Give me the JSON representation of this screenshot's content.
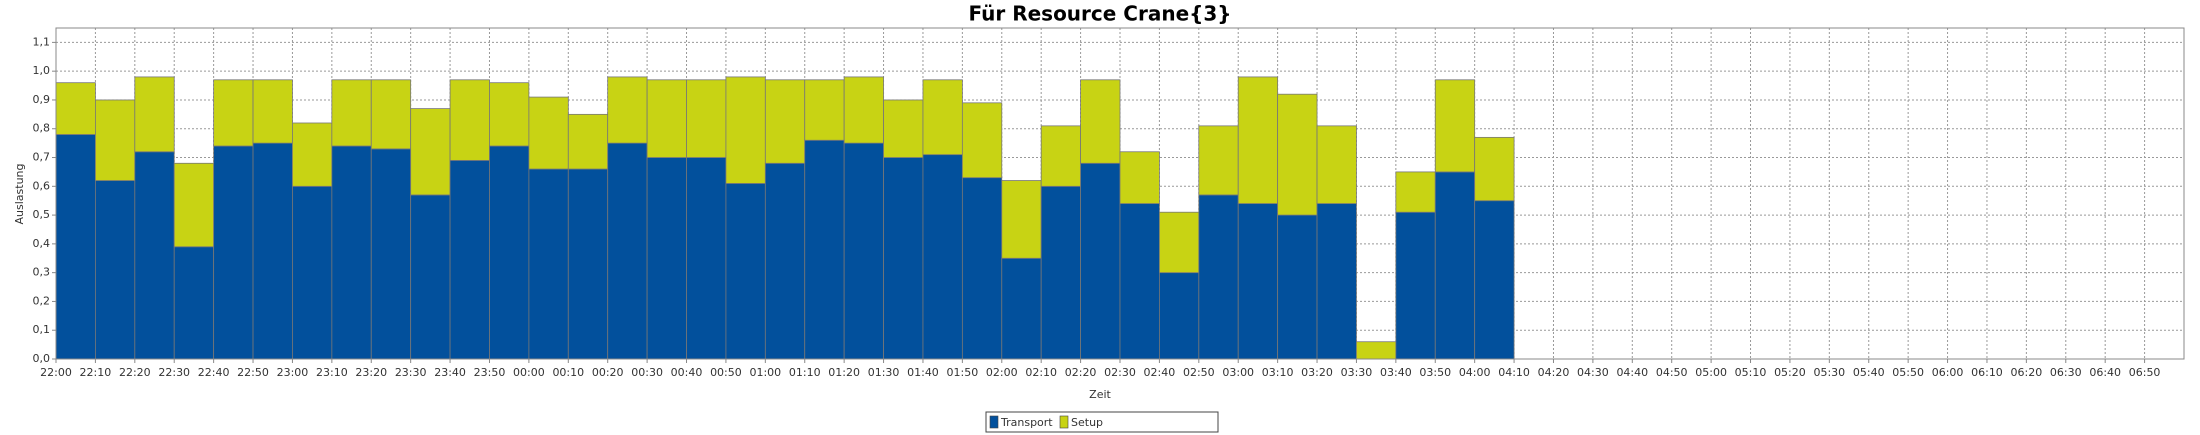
{
  "chart_data": {
    "type": "stacked_bar",
    "title": "Für Resource Crane{3}",
    "x_label": "Zeit",
    "y_label": "Auslastung",
    "categories": [
      "22:00",
      "22:10",
      "22:20",
      "22:30",
      "22:40",
      "22:50",
      "23:00",
      "23:10",
      "23:20",
      "23:30",
      "23:40",
      "23:50",
      "00:00",
      "00:10",
      "00:20",
      "00:30",
      "00:40",
      "00:50",
      "01:00",
      "01:10",
      "01:20",
      "01:30",
      "01:40",
      "01:50",
      "02:00",
      "02:10",
      "02:20",
      "02:30",
      "02:40",
      "02:50",
      "03:00",
      "03:10",
      "03:20",
      "03:30",
      "03:40",
      "03:50",
      "04:00",
      "04:10",
      "04:20",
      "04:30",
      "04:40",
      "04:50",
      "05:00",
      "05:10",
      "05:20",
      "05:30",
      "05:40",
      "05:50",
      "06:00",
      "06:10",
      "06:20",
      "06:30",
      "06:40",
      "06:50"
    ],
    "series": [
      {
        "name": "Transport",
        "color": "#02509c",
        "values": [
          0.78,
          0.62,
          0.72,
          0.39,
          0.74,
          0.75,
          0.6,
          0.74,
          0.73,
          0.57,
          0.69,
          0.74,
          0.66,
          0.66,
          0.75,
          0.7,
          0.7,
          0.61,
          0.68,
          0.76,
          0.75,
          0.7,
          0.71,
          0.63,
          0.35,
          0.6,
          0.68,
          0.54,
          0.3,
          0.57,
          0.54,
          0.5,
          0.54,
          0,
          0.51,
          0.65,
          0.55,
          null,
          null,
          null,
          null,
          null,
          null,
          null,
          null,
          null,
          null,
          null,
          null,
          null,
          null,
          null,
          null,
          null
        ]
      },
      {
        "name": "Setup",
        "color": "#c8d314",
        "values": [
          0.18,
          0.28,
          0.26,
          0.29,
          0.23,
          0.22,
          0.22,
          0.23,
          0.24,
          0.3,
          0.28,
          0.22,
          0.25,
          0.19,
          0.23,
          0.27,
          0.27,
          0.37,
          0.29,
          0.21,
          0.23,
          0.2,
          0.26,
          0.26,
          0.27,
          0.21,
          0.29,
          0.18,
          0.21,
          0.24,
          0.44,
          0.42,
          0.27,
          0.06,
          0.14,
          0.32,
          0.22,
          null,
          null,
          null,
          null,
          null,
          null,
          null,
          null,
          null,
          null,
          null,
          null,
          null,
          null,
          null,
          null,
          null
        ]
      }
    ],
    "ylim": [
      0,
      1.15
    ],
    "yticks": [
      {
        "value": 0,
        "label": "0,0"
      },
      {
        "value": 0.1,
        "label": "0,1"
      },
      {
        "value": 0.2,
        "label": "0,2"
      },
      {
        "value": 0.3,
        "label": "0,3"
      },
      {
        "value": 0.4,
        "label": "0,4"
      },
      {
        "value": 0.5,
        "label": "0,5"
      },
      {
        "value": 0.6,
        "label": "0,6"
      },
      {
        "value": 0.7,
        "label": "0,7"
      },
      {
        "value": 0.8,
        "label": "0,8"
      },
      {
        "value": 0.9,
        "label": "0,9"
      },
      {
        "value": 1.0,
        "label": "1,0"
      },
      {
        "value": 1.1,
        "label": "1,1"
      }
    ],
    "grid": true,
    "legend": "bottom"
  }
}
